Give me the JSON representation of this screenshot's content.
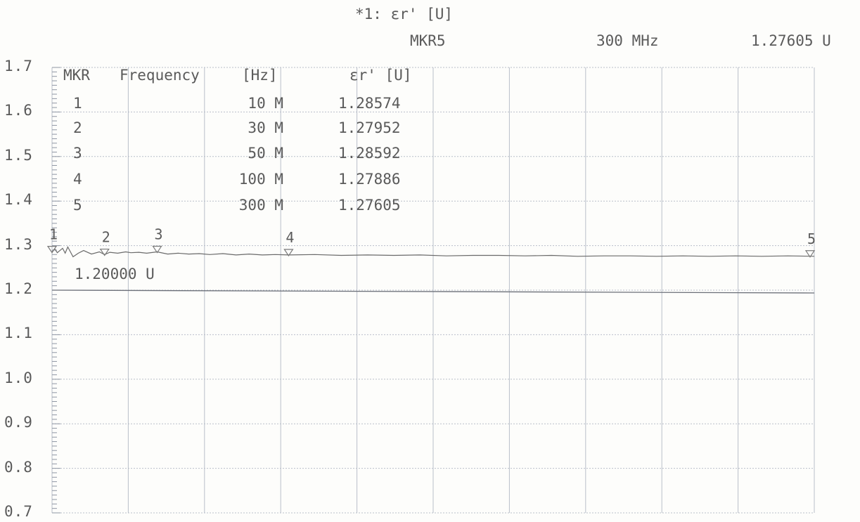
{
  "header": {
    "trace_title": "*1: εr' [U]",
    "marker_name": "MKR5",
    "marker_freq": "300 MHz",
    "marker_value": "1.27605 U"
  },
  "marker_table": {
    "headers": [
      "MKR",
      "Frequency",
      "[Hz]",
      "εr' [U]"
    ],
    "rows": [
      {
        "mkr": "1",
        "freq": "10 M",
        "value": "1.28574"
      },
      {
        "mkr": "2",
        "freq": "30 M",
        "value": "1.27952"
      },
      {
        "mkr": "3",
        "freq": "50 M",
        "value": "1.28592"
      },
      {
        "mkr": "4",
        "freq": "100 M",
        "value": "1.27886"
      },
      {
        "mkr": "5",
        "freq": "300 M",
        "value": "1.27605"
      }
    ]
  },
  "reference_label": "1.20000 U",
  "colors": {
    "grid": "#b9bfca",
    "trace": "#6a6a6a",
    "text": "#5a5a5a"
  },
  "chart_data": {
    "type": "line",
    "title": "*1: εr' [U]",
    "xlabel": "",
    "ylabel": "",
    "yticks": [
      "1.7",
      "1.6",
      "1.5",
      "1.4",
      "1.3",
      "1.2",
      "1.1",
      "1.0",
      "0.9",
      "0.8",
      "0.7"
    ],
    "ylim": [
      0.7,
      1.7
    ],
    "xlim_mhz": [
      10,
      300
    ],
    "x_divisions": 10,
    "grid": true,
    "reference_line": 1.2,
    "series": [
      {
        "x": [
          10,
          11,
          12,
          13,
          14,
          15,
          16,
          18,
          20,
          22,
          25,
          28,
          30,
          32,
          35,
          38,
          40,
          43,
          46,
          50,
          54,
          58,
          62,
          66,
          70,
          75,
          80,
          85,
          90,
          95,
          100,
          110,
          120,
          130,
          140,
          150,
          160,
          170,
          180,
          190,
          200,
          210,
          220,
          230,
          240,
          250,
          260,
          270,
          280,
          290,
          300
        ],
        "values": [
          1.286,
          1.293,
          1.284,
          1.289,
          1.294,
          1.283,
          1.297,
          1.275,
          1.283,
          1.289,
          1.281,
          1.286,
          1.28,
          1.285,
          1.283,
          1.286,
          1.284,
          1.285,
          1.283,
          1.286,
          1.281,
          1.283,
          1.281,
          1.282,
          1.28,
          1.282,
          1.279,
          1.281,
          1.279,
          1.28,
          1.279,
          1.28,
          1.278,
          1.279,
          1.278,
          1.279,
          1.277,
          1.278,
          1.278,
          1.277,
          1.278,
          1.276,
          1.277,
          1.277,
          1.276,
          1.277,
          1.276,
          1.277,
          1.276,
          1.277,
          1.276
        ]
      }
    ],
    "markers": [
      {
        "id": "1",
        "freq_mhz": 10,
        "value": 1.28574
      },
      {
        "id": "2",
        "freq_mhz": 30,
        "value": 1.27952
      },
      {
        "id": "3",
        "freq_mhz": 50,
        "value": 1.28592
      },
      {
        "id": "4",
        "freq_mhz": 100,
        "value": 1.27886
      },
      {
        "id": "5",
        "freq_mhz": 300,
        "value": 1.27605
      }
    ]
  }
}
